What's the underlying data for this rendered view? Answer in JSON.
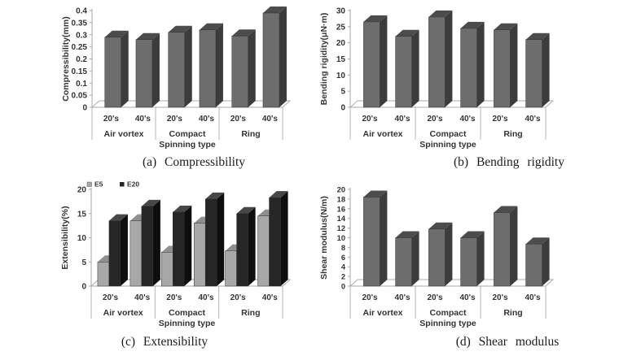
{
  "colors": {
    "axis": "#a8a8a8",
    "separator": "#b5b5b5",
    "text": "#333333",
    "bar_front": "#6d6d6d",
    "bar_side": "#3c3c3c",
    "bar_top": "#4c4c4c",
    "e5_front": "#a8a8a8",
    "e5_side": "#6e6e6e",
    "e5_top": "#8f8f8f",
    "e20_front": "#262626",
    "e20_side": "#0e0e0e",
    "e20_top": "#474747"
  },
  "chart_data": [
    {
      "type": "bar",
      "caption": "(a) Compressibility",
      "ylabel": "Compressibility(mm)",
      "xlabel": "Spinning type",
      "groups": [
        "Air vortex",
        "Compact",
        "Ring"
      ],
      "categories": [
        "20's",
        "40's"
      ],
      "values": [
        0.29,
        0.28,
        0.31,
        0.32,
        0.295,
        0.39
      ],
      "ylim": [
        0,
        0.4
      ],
      "ytick_labels": [
        "0",
        "0.05",
        "0.1",
        "0.15",
        "0.2",
        "0.25",
        "0.3",
        "0.35",
        "0.4"
      ],
      "grid": false,
      "style3d": true
    },
    {
      "type": "bar",
      "caption": "(b) Bending rigidity",
      "ylabel": "Bending rigidity(μN·m)",
      "xlabel": "Spinning type",
      "groups": [
        "Air vortex",
        "Compact",
        "Ring"
      ],
      "categories": [
        "20's",
        "40's"
      ],
      "values": [
        26.5,
        22,
        28,
        24.5,
        24,
        21
      ],
      "ylim": [
        0,
        30
      ],
      "ytick_labels": [
        "0",
        "5",
        "10",
        "15",
        "20",
        "25",
        "30"
      ],
      "grid": false,
      "style3d": true
    },
    {
      "type": "bar",
      "caption": "(c) Extensibility",
      "ylabel": "Extensibility(%)",
      "xlabel": "Spinning type",
      "groups": [
        "Air vortex",
        "Compact",
        "Ring"
      ],
      "categories": [
        "20's",
        "40's"
      ],
      "series": [
        {
          "name": "E5",
          "values": [
            5,
            13.5,
            7,
            13,
            7.3,
            14.5
          ]
        },
        {
          "name": "E20",
          "values": [
            13.5,
            16.5,
            15.3,
            18,
            15,
            18.3
          ]
        }
      ],
      "ylim": [
        0,
        20
      ],
      "ytick_labels": [
        "0",
        "5",
        "10",
        "15",
        "20"
      ],
      "legend_position": "top-left",
      "grid": false,
      "style3d": true
    },
    {
      "type": "bar",
      "caption": "(d) Shear modulus",
      "ylabel": "Shear modulus(N/m)",
      "xlabel": "Spinning type",
      "groups": [
        "Air vortex",
        "Compact",
        "Ring"
      ],
      "categories": [
        "20's",
        "40's"
      ],
      "values": [
        18.4,
        10,
        11.8,
        10,
        15.2,
        8.7
      ],
      "ylim": [
        0,
        20
      ],
      "ytick_labels": [
        "0",
        "2",
        "4",
        "6",
        "8",
        "10",
        "12",
        "14",
        "16",
        "18",
        "20"
      ],
      "grid": false,
      "style3d": true
    }
  ]
}
